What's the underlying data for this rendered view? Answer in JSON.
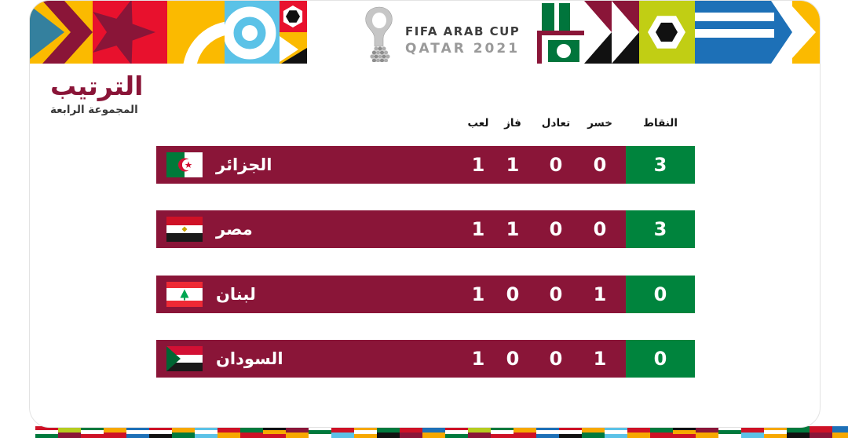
{
  "page": {
    "title": "الترتيب",
    "subtitle": "المجموعة الرابعة"
  },
  "logo": {
    "line1": "FIFA ARAB CUP",
    "line2": "QATAR 2021"
  },
  "chart_data": {
    "type": "table",
    "title": "الترتيب",
    "subtitle": "المجموعة الرابعة",
    "columns": [
      "لعب",
      "فاز",
      "تعادل",
      "خسر",
      "النقاط"
    ],
    "rows": [
      {
        "team": "الجزائر",
        "flag": "algeria-flag",
        "played": "1",
        "won": "1",
        "drawn": "0",
        "lost": "0",
        "points": "3"
      },
      {
        "team": "مصر",
        "flag": "egypt-flag",
        "played": "1",
        "won": "1",
        "drawn": "0",
        "lost": "0",
        "points": "3"
      },
      {
        "team": "لبنان",
        "flag": "lebanon-flag",
        "played": "1",
        "won": "0",
        "drawn": "0",
        "lost": "1",
        "points": "0"
      },
      {
        "team": "السودان",
        "flag": "sudan-flag",
        "played": "1",
        "won": "0",
        "drawn": "0",
        "lost": "1",
        "points": "0"
      }
    ]
  },
  "colors": {
    "row_maroon": "#8a1538",
    "points_green": "#00843d",
    "banner_yellow": "#fbba00",
    "banner_red": "#e8112d",
    "banner_blue": "#1d70b7",
    "banner_light_blue": "#5bc2e7",
    "banner_lime": "#c1ce14",
    "banner_teal": "#34809e",
    "title_maroon": "#8a1538"
  },
  "footer": {
    "tile_count": 36,
    "mosaic_palettes": [
      [
        "#ce1126",
        "#ffffff",
        "#007a3d"
      ],
      [
        "#b5cc1f",
        "#8a1538"
      ],
      [
        "#007a3d",
        "#ffffff",
        "#ce1126"
      ],
      [
        "#f7a800",
        "#ce1126"
      ],
      [
        "#1d70b7",
        "#ffffff",
        "#1d70b7"
      ],
      [
        "#ce1126",
        "#ffffff",
        "#111111"
      ],
      [
        "#f7a800",
        "#007a3d"
      ],
      [
        "#5bc2e7",
        "#ffffff",
        "#5bc2e7"
      ],
      [
        "#ce1126",
        "#f7a800"
      ],
      [
        "#007a3d",
        "#ce1126"
      ],
      [
        "#111111",
        "#f7a800",
        "#ce1126"
      ],
      [
        "#8a1538",
        "#f7a800"
      ],
      [
        "#ffffff",
        "#007a3d",
        "#ffffff"
      ],
      [
        "#ce1126",
        "#5bc2e7"
      ],
      [
        "#f7a800",
        "#ffffff",
        "#f7a800"
      ],
      [
        "#007a3d",
        "#111111"
      ],
      [
        "#ce1126",
        "#8a1538"
      ],
      [
        "#1d70b7",
        "#f7a800"
      ]
    ]
  }
}
